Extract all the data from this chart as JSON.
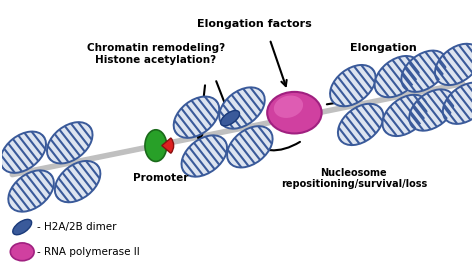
{
  "bg_color": "#ffffff",
  "nuc_face": "#dde4f0",
  "nuc_edge": "#3a5a9a",
  "nuc_stripe": "#3a5a9a",
  "dna_color": "#c0c0c0",
  "rna_pol_outer": "#d040a0",
  "rna_pol_inner": "#e870c0",
  "h2a2b_face": "#3a5a9a",
  "h2a2b_edge": "#1a3a7a",
  "promoter_green": "#28a028",
  "promoter_red": "#dd2020",
  "label_elongation_factors": "Elongation factors",
  "label_elongation": "Elongation",
  "label_chromatin": "Chromatin remodeling?\nHistone acetylation?",
  "label_nucleosome": "Nucleosome\nrepositioning/survival/loss",
  "label_promoter": "Promoter",
  "legend_h2a2b": "- H2A/2B dimer",
  "legend_rnapol": "- RNA polymerase II"
}
